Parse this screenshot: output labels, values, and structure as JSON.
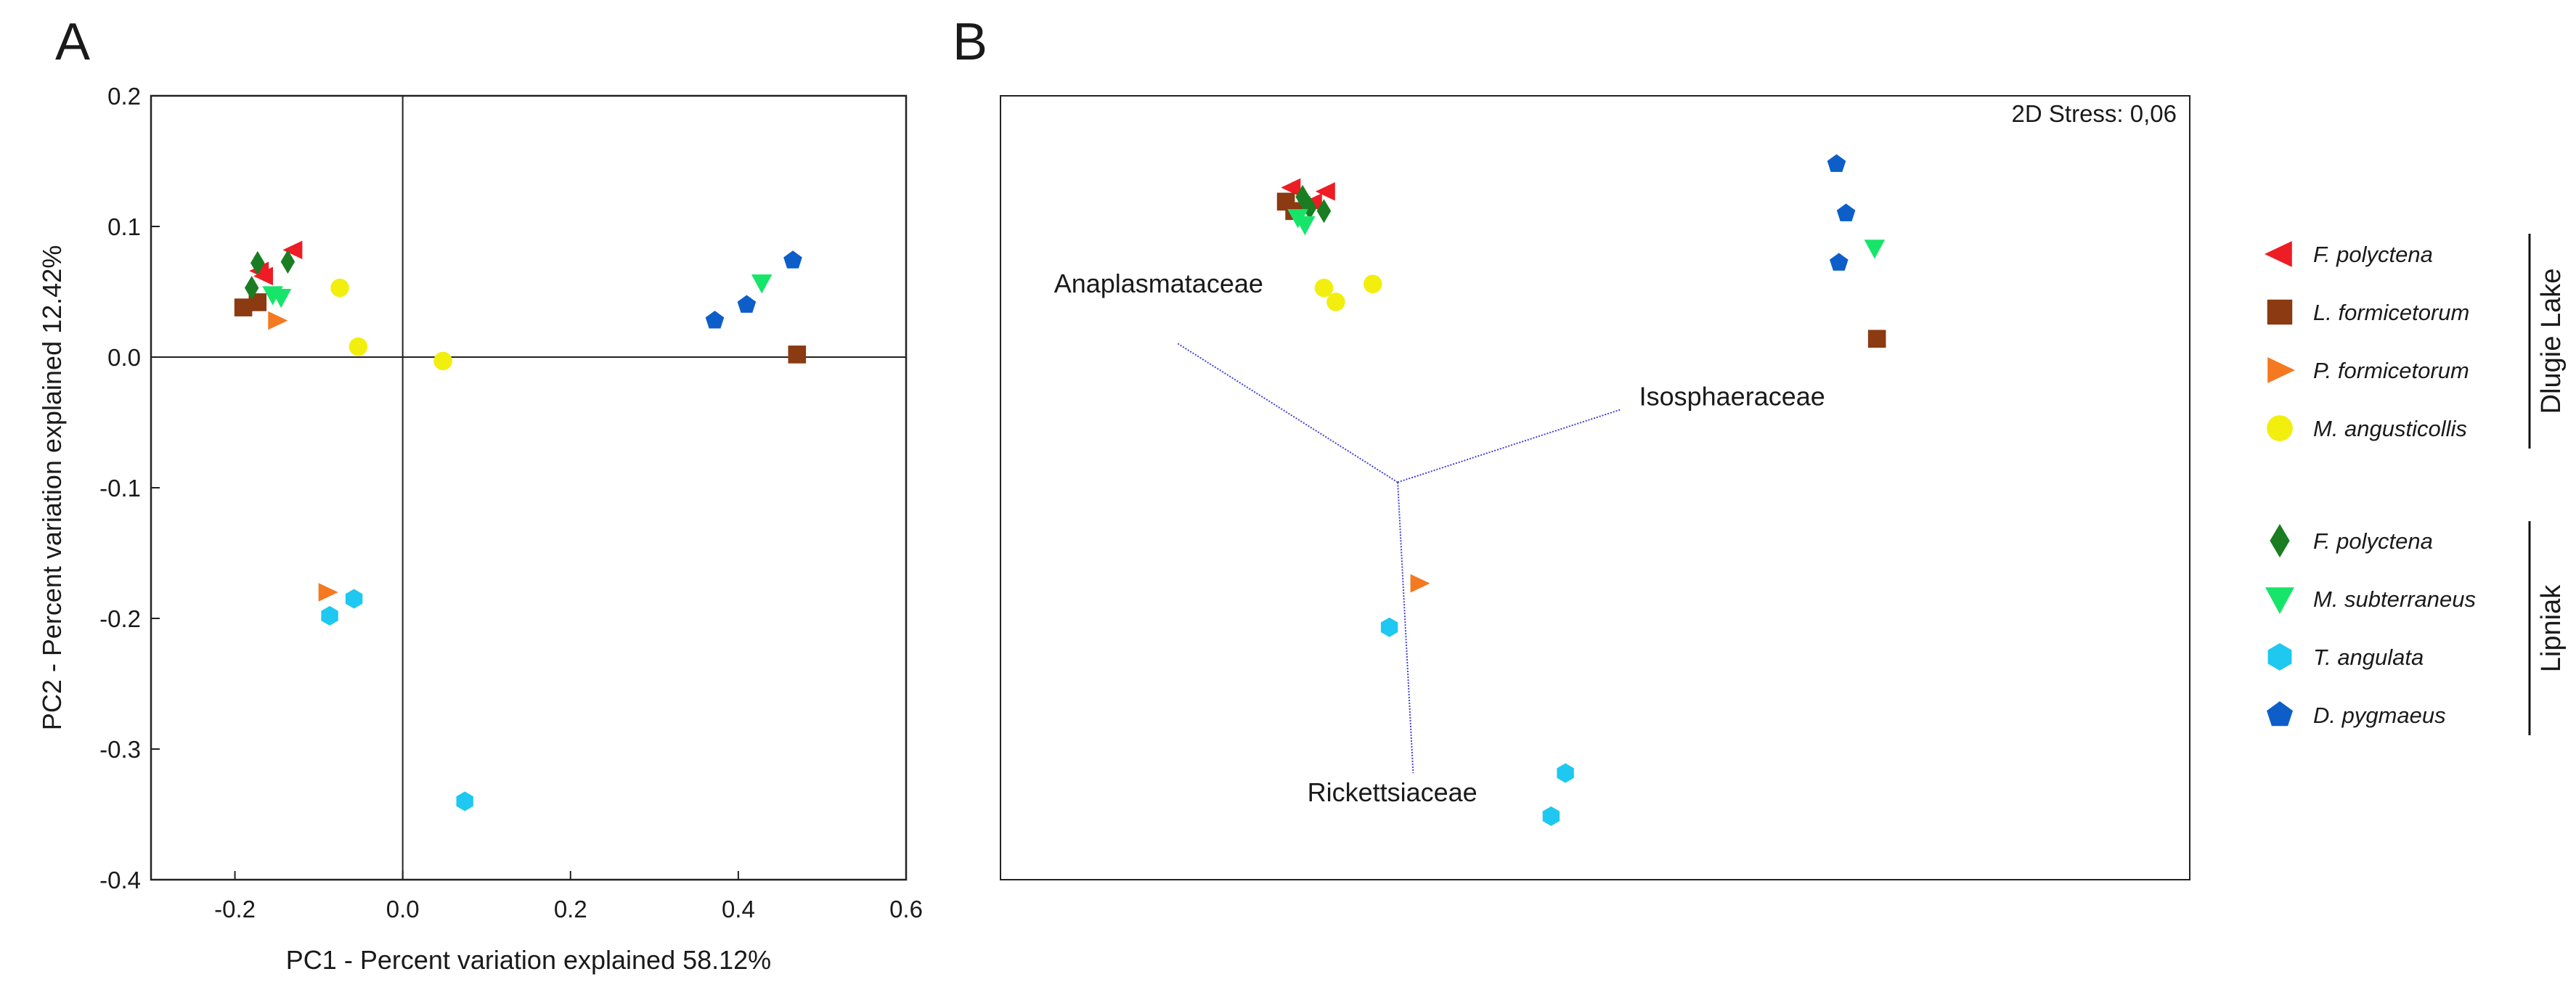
{
  "colors": {
    "F_polyctena_DL": "#ee1c25",
    "L_formicetorum": "#8b3a12",
    "P_formicetorum": "#f47920",
    "M_angusticollis": "#f2ee0e",
    "F_polyctena_L": "#1a7d22",
    "M_subterraneus": "#16e56a",
    "T_angulata": "#1ec8f0",
    "D_pygmaeus": "#0d5ec9",
    "vector": "#4040e0",
    "axis": "#222222"
  },
  "legend": {
    "groups": [
      {
        "name": "Dlugie Lake",
        "items": [
          {
            "label": "F. polyctena",
            "series": "F_polyctena_DL",
            "marker": "tri-left"
          },
          {
            "label": "L. formicetorum",
            "series": "L_formicetorum",
            "marker": "square"
          },
          {
            "label": "P. formicetorum",
            "series": "P_formicetorum",
            "marker": "tri-right"
          },
          {
            "label": "M. angusticollis",
            "series": "M_angusticollis",
            "marker": "circle"
          }
        ]
      },
      {
        "name": "Lipniak",
        "items": [
          {
            "label": "F. polyctena",
            "series": "F_polyctena_L",
            "marker": "diamond"
          },
          {
            "label": "M. subterraneus",
            "series": "M_subterraneus",
            "marker": "tri-down"
          },
          {
            "label": "T. angulata",
            "series": "T_angulata",
            "marker": "hexagon"
          },
          {
            "label": "D. pygmaeus",
            "series": "D_pygmaeus",
            "marker": "pentagon"
          }
        ]
      }
    ]
  },
  "chart_data": [
    {
      "panel": "A",
      "type": "scatter",
      "title": "",
      "xlabel": "PC1 - Percent variation explained 58.12%",
      "ylabel": "PC2 - Percent variation explained 12.42%",
      "xlim": [
        -0.3,
        0.6
      ],
      "ylim": [
        -0.4,
        0.2
      ],
      "xticks": [
        -0.2,
        0.0,
        0.2,
        0.4,
        0.6
      ],
      "yticks": [
        -0.4,
        -0.3,
        -0.2,
        -0.1,
        0.0,
        0.1,
        0.2
      ],
      "xtick_labels": [
        "-0.2",
        "0.0",
        "0.2",
        "0.4",
        "0.6"
      ],
      "ytick_labels": [
        "-0.4",
        "-0.3",
        "-0.2",
        "-0.1",
        "0.0",
        "0.1",
        "0.2"
      ],
      "grid": false,
      "zero_lines": true,
      "series": [
        {
          "name": "F. polyctena (Dlugie Lake)",
          "key": "F_polyctena_DL",
          "marker": "tri-left",
          "points": [
            [
              -0.13,
              0.082
            ],
            [
              -0.17,
              0.066
            ],
            [
              -0.165,
              0.062
            ]
          ]
        },
        {
          "name": "L. formicetorum",
          "key": "L_formicetorum",
          "marker": "square",
          "points": [
            [
              -0.19,
              0.038
            ],
            [
              -0.173,
              0.042
            ],
            [
              0.47,
              0.002
            ]
          ]
        },
        {
          "name": "P. formicetorum",
          "key": "P_formicetorum",
          "marker": "tri-right",
          "points": [
            [
              -0.15,
              0.028
            ],
            [
              -0.09,
              -0.18
            ]
          ]
        },
        {
          "name": "M. angusticollis",
          "key": "M_angusticollis",
          "marker": "circle",
          "points": [
            [
              -0.075,
              0.053
            ],
            [
              -0.053,
              0.008
            ],
            [
              0.048,
              -0.003
            ]
          ]
        },
        {
          "name": "F. polyctena (Lipniak)",
          "key": "F_polyctena_L",
          "marker": "diamond",
          "points": [
            [
              -0.18,
              0.053
            ],
            [
              -0.173,
              0.072
            ],
            [
              -0.137,
              0.073
            ]
          ]
        },
        {
          "name": "M. subterraneus",
          "key": "M_subterraneus",
          "marker": "tri-down",
          "points": [
            [
              -0.155,
              0.048
            ],
            [
              -0.145,
              0.046
            ],
            [
              0.428,
              0.057
            ]
          ]
        },
        {
          "name": "T. angulata",
          "key": "T_angulata",
          "marker": "hexagon",
          "points": [
            [
              -0.087,
              -0.198
            ],
            [
              -0.058,
              -0.185
            ],
            [
              0.074,
              -0.34
            ]
          ]
        },
        {
          "name": "D. pygmaeus",
          "key": "D_pygmaeus",
          "marker": "pentagon",
          "points": [
            [
              0.372,
              0.028
            ],
            [
              0.41,
              0.04
            ],
            [
              0.465,
              0.074
            ]
          ]
        }
      ]
    },
    {
      "panel": "B",
      "type": "scatter",
      "title": "",
      "annotation": "2D Stress: 0,06",
      "xlim": [
        0,
        100
      ],
      "ylim": [
        0,
        100
      ],
      "axes_shown": false,
      "vector_origin": [
        33.4,
        50.7
      ],
      "vectors": [
        {
          "label": "Anaplasmataceae",
          "end": [
            14.9,
            68.4
          ],
          "label_at": [
            4.5,
            74.9
          ]
        },
        {
          "label": "Isosphaeraceae",
          "end": [
            52.2,
            60.0
          ],
          "label_at": [
            53.7,
            60.5
          ]
        },
        {
          "label": "Rickettsiaceae",
          "end": [
            34.7,
            13.6
          ],
          "label_at": [
            25.8,
            10.0
          ]
        }
      ],
      "series": [
        {
          "name": "F. polyctena (Dlugie Lake)",
          "key": "F_polyctena_DL",
          "marker": "tri-left",
          "points": [
            [
              24.5,
              88.3
            ],
            [
              27.4,
              87.8
            ],
            [
              26.3,
              86.4
            ]
          ]
        },
        {
          "name": "L. formicetorum",
          "key": "L_formicetorum",
          "marker": "square",
          "points": [
            [
              24.0,
              86.5
            ],
            [
              24.7,
              85.3
            ],
            [
              73.7,
              69.0
            ]
          ]
        },
        {
          "name": "P. formicetorum",
          "key": "P_formicetorum",
          "marker": "tri-right",
          "points": [
            [
              35.2,
              37.8
            ]
          ]
        },
        {
          "name": "M. angusticollis",
          "key": "M_angusticollis",
          "marker": "circle",
          "points": [
            [
              27.2,
              75.5
            ],
            [
              28.2,
              73.7
            ],
            [
              31.3,
              76.0
            ]
          ]
        },
        {
          "name": "F. polyctena (Lipniak)",
          "key": "F_polyctena_L",
          "marker": "diamond",
          "points": [
            [
              25.4,
              87.1
            ],
            [
              26.0,
              85.7
            ],
            [
              27.2,
              85.3
            ]
          ]
        },
        {
          "name": "M. subterraneus",
          "key": "M_subterraneus",
          "marker": "tri-down",
          "points": [
            [
              25.0,
              84.5
            ],
            [
              25.6,
              83.6
            ],
            [
              73.5,
              80.6
            ]
          ]
        },
        {
          "name": "T. angulata",
          "key": "T_angulata",
          "marker": "hexagon",
          "points": [
            [
              32.7,
              32.2
            ],
            [
              47.5,
              13.6
            ],
            [
              46.3,
              8.1
            ]
          ]
        },
        {
          "name": "D. pygmaeus",
          "key": "D_pygmaeus",
          "marker": "pentagon",
          "points": [
            [
              70.3,
              91.3
            ],
            [
              71.1,
              85.0
            ],
            [
              70.5,
              78.7
            ]
          ]
        }
      ]
    }
  ]
}
